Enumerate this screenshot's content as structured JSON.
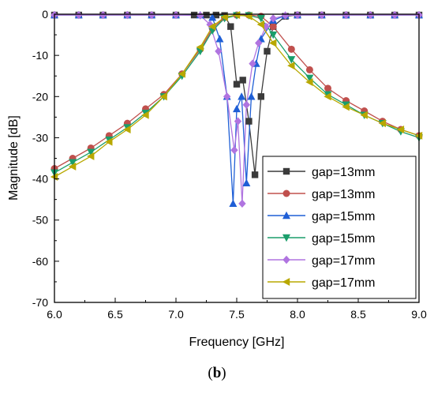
{
  "caption": {
    "open": "(",
    "letter": "b",
    "close": ")"
  },
  "chart_data": {
    "type": "line",
    "xlabel": "Frequency [GHz]",
    "ylabel": "Magnitude [dB]",
    "xlim": [
      6.0,
      9.0
    ],
    "ylim": [
      -70,
      0
    ],
    "xticks": [
      "6.0",
      "6.5",
      "7.0",
      "7.5",
      "8.0",
      "8.5",
      "9.0"
    ],
    "yticks": [
      "0",
      "-10",
      "-20",
      "-30",
      "-40",
      "-50",
      "-60",
      "-70"
    ],
    "legend_position": "bottom-right",
    "grid": false,
    "series": [
      {
        "name": "gap=13mm",
        "color": "#3b3b3b",
        "marker": "square",
        "x": [
          6.0,
          6.2,
          6.4,
          6.6,
          6.8,
          7.0,
          7.15,
          7.25,
          7.33,
          7.4,
          7.45,
          7.5,
          7.55,
          7.6,
          7.65,
          7.7,
          7.75,
          7.8,
          7.9,
          8.0,
          8.2,
          8.4,
          8.6,
          8.8,
          9.0
        ],
        "y": [
          -0.2,
          -0.2,
          -0.2,
          -0.2,
          -0.2,
          -0.2,
          -0.2,
          -0.2,
          -0.2,
          -0.3,
          -3,
          -17,
          -16,
          -26,
          -39,
          -20,
          -9,
          -3,
          -0.5,
          -0.2,
          -0.2,
          -0.2,
          -0.2,
          -0.2,
          -0.2
        ]
      },
      {
        "name": "gap=13mm",
        "color": "#c0504d",
        "marker": "circle",
        "x": [
          6.0,
          6.15,
          6.3,
          6.45,
          6.6,
          6.75,
          6.9,
          7.05,
          7.2,
          7.3,
          7.4,
          7.5,
          7.6,
          7.7,
          7.8,
          7.95,
          8.1,
          8.25,
          8.4,
          8.55,
          8.7,
          8.85,
          9.0
        ],
        "y": [
          -37.5,
          -35,
          -32.5,
          -29.5,
          -26.5,
          -23,
          -19.5,
          -14.5,
          -8.5,
          -3.5,
          -0.8,
          -0.2,
          -0.2,
          -0.5,
          -3,
          -8.5,
          -13.5,
          -18,
          -21,
          -23.5,
          -26,
          -28,
          -29.5
        ]
      },
      {
        "name": "gap=15mm",
        "color": "#1f5fd6",
        "marker": "triangle-up",
        "x": [
          6.0,
          6.2,
          6.4,
          6.6,
          6.8,
          7.0,
          7.2,
          7.3,
          7.36,
          7.42,
          7.47,
          7.5,
          7.54,
          7.58,
          7.62,
          7.66,
          7.7,
          7.8,
          7.9,
          8.0,
          8.2,
          8.4,
          8.6,
          8.8,
          9.0
        ],
        "y": [
          -0.2,
          -0.2,
          -0.2,
          -0.2,
          -0.2,
          -0.2,
          -0.2,
          -0.8,
          -6,
          -20,
          -46,
          -23,
          -20,
          -41,
          -20,
          -12,
          -6,
          -1.5,
          -0.3,
          -0.2,
          -0.2,
          -0.2,
          -0.2,
          -0.2,
          -0.2
        ]
      },
      {
        "name": "gap=15mm",
        "color": "#1a9e6b",
        "marker": "triangle-down",
        "x": [
          6.0,
          6.15,
          6.3,
          6.45,
          6.6,
          6.75,
          6.9,
          7.05,
          7.2,
          7.3,
          7.4,
          7.5,
          7.6,
          7.7,
          7.8,
          7.95,
          8.1,
          8.25,
          8.4,
          8.55,
          8.7,
          8.85,
          9.0
        ],
        "y": [
          -38.5,
          -36,
          -33.5,
          -30.5,
          -27.5,
          -24,
          -20,
          -15,
          -9,
          -4,
          -1,
          -0.3,
          -0.3,
          -1,
          -5,
          -11,
          -15.5,
          -19.5,
          -22,
          -24.5,
          -26.5,
          -28.5,
          -30
        ]
      },
      {
        "name": "gap=17mm",
        "color": "#b074e0",
        "marker": "diamond",
        "x": [
          6.0,
          6.2,
          6.4,
          6.6,
          6.8,
          7.0,
          7.2,
          7.28,
          7.35,
          7.42,
          7.48,
          7.51,
          7.545,
          7.58,
          7.63,
          7.68,
          7.74,
          7.8,
          7.9,
          8.0,
          8.2,
          8.4,
          8.6,
          8.8,
          9.0
        ],
        "y": [
          -0.2,
          -0.2,
          -0.2,
          -0.2,
          -0.2,
          -0.2,
          -0.3,
          -2.5,
          -9,
          -20,
          -33,
          -26,
          -46,
          -22,
          -12,
          -7,
          -3,
          -1,
          -0.3,
          -0.2,
          -0.2,
          -0.2,
          -0.2,
          -0.2,
          -0.2
        ]
      },
      {
        "name": "gap=17mm",
        "color": "#b8a800",
        "marker": "triangle-left",
        "x": [
          6.0,
          6.15,
          6.3,
          6.45,
          6.6,
          6.75,
          6.9,
          7.05,
          7.2,
          7.3,
          7.4,
          7.5,
          7.6,
          7.7,
          7.8,
          7.95,
          8.1,
          8.25,
          8.4,
          8.55,
          8.7,
          8.85,
          9.0
        ],
        "y": [
          -39.5,
          -37,
          -34.5,
          -31,
          -28,
          -24.5,
          -20,
          -14.5,
          -8,
          -3,
          -0.7,
          -0.2,
          -0.5,
          -2.5,
          -7,
          -12.5,
          -16.5,
          -20,
          -22.5,
          -24.5,
          -26.5,
          -28,
          -29.5
        ]
      }
    ]
  }
}
